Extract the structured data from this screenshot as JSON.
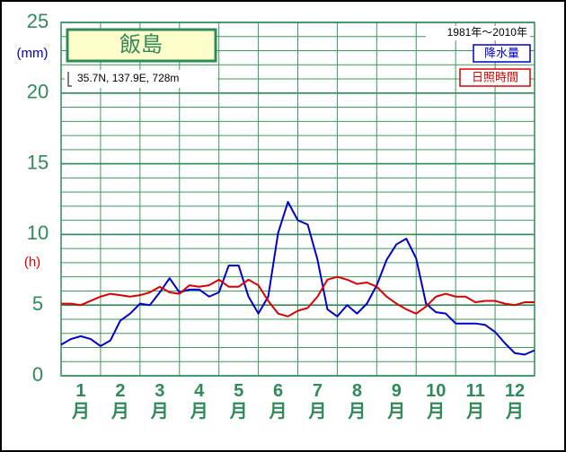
{
  "chart_data": {
    "type": "line",
    "title": "飯島",
    "subtitle": "35.7N,  137.9E,  728m",
    "period": "1981年～2010年",
    "ylabel": "(mm)",
    "ylabel2": "(h)",
    "x": [
      0,
      0.25,
      0.5,
      0.75,
      1,
      1.25,
      1.5,
      1.75,
      2,
      2.25,
      2.5,
      2.75,
      3,
      3.25,
      3.5,
      3.75,
      4,
      4.25,
      4.5,
      4.75,
      5,
      5.25,
      5.5,
      5.75,
      6,
      6.25,
      6.5,
      6.75,
      7,
      7.25,
      7.5,
      7.75,
      8,
      8.25,
      8.5,
      8.75,
      9,
      9.25,
      9.5,
      9.75,
      10,
      10.25,
      10.5,
      10.75,
      11,
      11.25,
      11.5,
      11.75,
      12
    ],
    "xlim": [
      0,
      12
    ],
    "xticks": [
      {
        "value": 0.5,
        "label": "1月"
      },
      {
        "value": 1.5,
        "label": "2月"
      },
      {
        "value": 2.5,
        "label": "3月"
      },
      {
        "value": 3.5,
        "label": "4月"
      },
      {
        "value": 4.5,
        "label": "5月"
      },
      {
        "value": 5.5,
        "label": "6月"
      },
      {
        "value": 6.5,
        "label": "7月"
      },
      {
        "value": 7.5,
        "label": "8月"
      },
      {
        "value": 8.5,
        "label": "9月"
      },
      {
        "value": 9.5,
        "label": "10月"
      },
      {
        "value": 10.5,
        "label": "11月"
      },
      {
        "value": 11.5,
        "label": "12月"
      }
    ],
    "xgrid": [
      0,
      1,
      2,
      3,
      4,
      5,
      6,
      7,
      8,
      9,
      10,
      11,
      12
    ],
    "ylim": [
      0,
      25
    ],
    "yticks": [
      0,
      5,
      10,
      15,
      20,
      25
    ],
    "ygrid": [
      0,
      1,
      2,
      3,
      4,
      5,
      6,
      7,
      8,
      9,
      10,
      11,
      12,
      13,
      14,
      15,
      16,
      17,
      18,
      19,
      20,
      21,
      22,
      23,
      24,
      25
    ],
    "grid": true,
    "series": [
      {
        "name": "降水量",
        "color": "#0000cc",
        "values": [
          2.2,
          2.6,
          2.8,
          2.6,
          2.1,
          2.5,
          3.9,
          4.4,
          5.1,
          5.0,
          5.9,
          6.9,
          5.9,
          6.1,
          6.1,
          5.6,
          5.9,
          7.8,
          7.8,
          5.6,
          4.4,
          5.6,
          10.1,
          12.3,
          11.0,
          10.7,
          8.2,
          4.7,
          4.2,
          5.0,
          4.4,
          5.1,
          6.4,
          8.2,
          9.3,
          9.7,
          8.3,
          5.1,
          4.5,
          4.4,
          3.7,
          3.7,
          3.7,
          3.6,
          3.1,
          2.3,
          1.6,
          1.5,
          1.8
        ]
      },
      {
        "name": "日照時間",
        "color": "#dd0000",
        "values": [
          5.1,
          5.1,
          5.0,
          5.3,
          5.6,
          5.8,
          5.7,
          5.6,
          5.7,
          5.9,
          6.3,
          5.9,
          5.8,
          6.4,
          6.3,
          6.4,
          6.8,
          6.3,
          6.3,
          6.8,
          6.4,
          5.3,
          4.4,
          4.2,
          4.6,
          4.8,
          5.6,
          6.8,
          7.0,
          6.8,
          6.5,
          6.6,
          6.3,
          5.6,
          5.1,
          4.7,
          4.4,
          4.9,
          5.6,
          5.8,
          5.6,
          5.6,
          5.2,
          5.3,
          5.3,
          5.1,
          5.0,
          5.2,
          5.2
        ]
      }
    ]
  }
}
